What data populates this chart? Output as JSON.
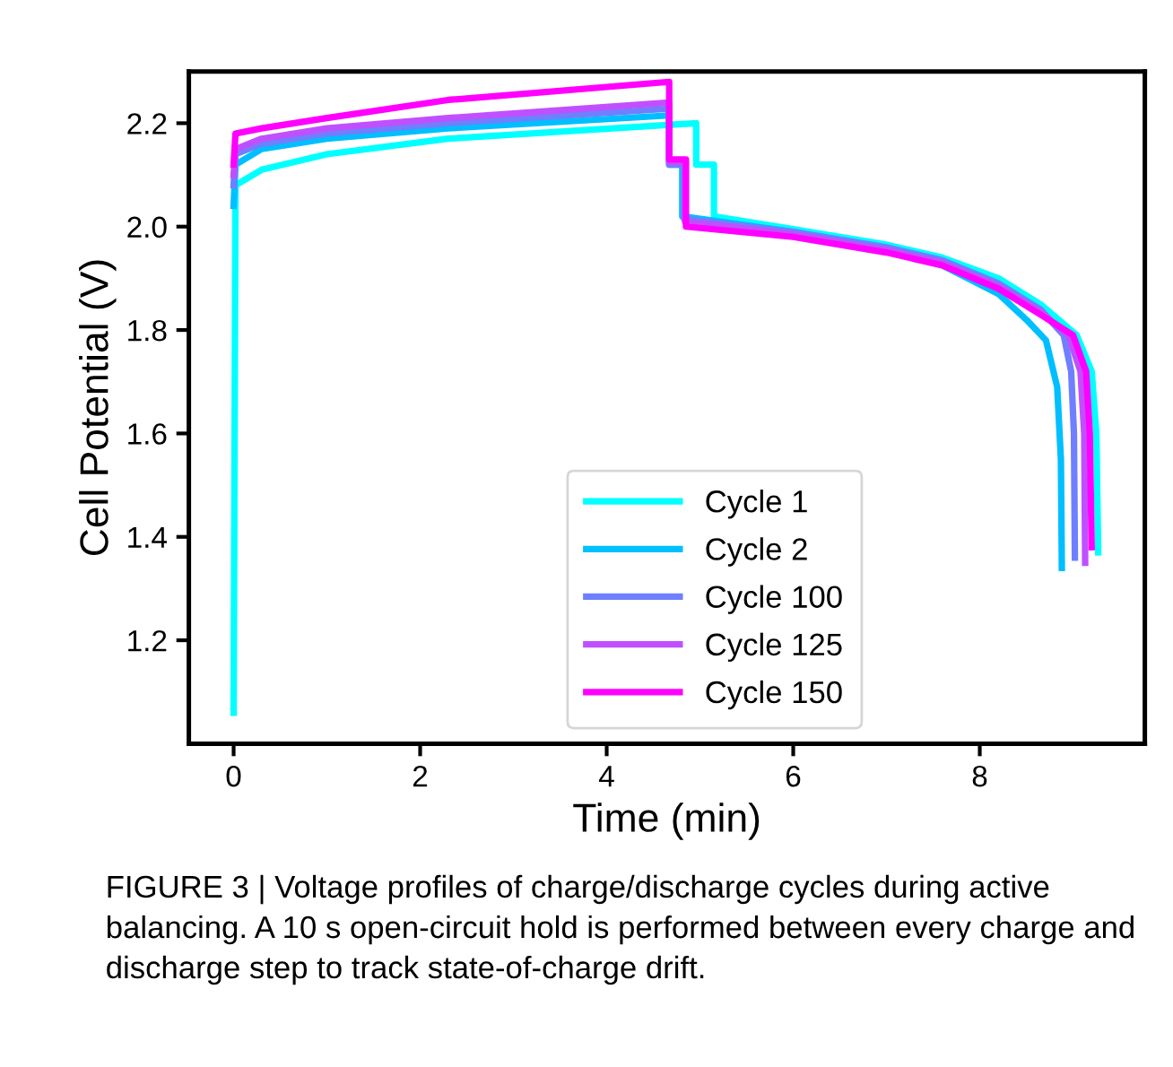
{
  "chart_data": {
    "type": "line",
    "xlabel": "Time (min)",
    "ylabel": "Cell Potential (V)",
    "xlim": [
      -0.48,
      9.77
    ],
    "ylim": [
      1.0,
      2.3
    ],
    "xticks": [
      0,
      2,
      4,
      6,
      8
    ],
    "yticks": [
      1.2,
      1.4,
      1.6,
      1.8,
      {
        "value": 2.0,
        "label": "2.0"
      },
      2.2
    ],
    "grid": false,
    "legend": "bottom",
    "marker": "none",
    "line_style": "solid",
    "annotations": [
      "FIGURE 3 | Voltage profiles of charge/discharge cycles during active balancing. A 10 s open-circuit hold is performed between every charge and discharge step to track state-of-charge drift."
    ],
    "series": [
      {
        "name": "Cycle 1",
        "color": "#00ffff",
        "x": [
          0,
          0.02,
          0.3,
          1.0,
          2.3,
          4.96,
          4.96,
          5.15,
          5.15,
          6,
          7,
          7.6,
          8.2,
          8.65,
          9.04,
          9.2,
          9.25,
          9.27
        ],
        "values": [
          1.06,
          2.08,
          2.11,
          2.14,
          2.17,
          2.2,
          2.12,
          2.12,
          2.02,
          1.995,
          1.965,
          1.94,
          1.9,
          1.85,
          1.79,
          1.72,
          1.6,
          1.37
        ]
      },
      {
        "name": "Cycle 2",
        "color": "#00bfff",
        "x": [
          0,
          0.02,
          0.3,
          1.0,
          2.3,
          4.67,
          4.67,
          4.81,
          4.81,
          6,
          7,
          7.6,
          8.2,
          8.5,
          8.71,
          8.83,
          8.87,
          8.88
        ],
        "values": [
          2.04,
          2.12,
          2.15,
          2.17,
          2.19,
          2.215,
          2.12,
          2.12,
          2.02,
          1.99,
          1.955,
          1.925,
          1.87,
          1.82,
          1.78,
          1.69,
          1.55,
          1.34
        ]
      },
      {
        "name": "Cycle 100",
        "color": "#6f7fff",
        "x": [
          0,
          0.02,
          0.3,
          1.0,
          2.3,
          4.67,
          4.67,
          4.83,
          4.83,
          6,
          7,
          7.6,
          8.2,
          8.65,
          8.9,
          8.98,
          9.01,
          9.02
        ],
        "values": [
          2.08,
          2.14,
          2.16,
          2.18,
          2.2,
          2.228,
          2.12,
          2.12,
          2.015,
          1.99,
          1.96,
          1.935,
          1.89,
          1.84,
          1.79,
          1.72,
          1.6,
          1.36
        ]
      },
      {
        "name": "Cycle 125",
        "color": "#c050ff",
        "x": [
          0,
          0.02,
          0.3,
          1.0,
          2.3,
          4.67,
          4.67,
          4.84,
          4.84,
          6,
          7,
          7.6,
          8.2,
          8.65,
          8.95,
          9.08,
          9.12,
          9.13
        ],
        "values": [
          2.1,
          2.15,
          2.17,
          2.19,
          2.21,
          2.24,
          2.125,
          2.125,
          2.01,
          1.985,
          1.955,
          1.93,
          1.885,
          1.835,
          1.79,
          1.72,
          1.6,
          1.35
        ]
      },
      {
        "name": "Cycle 150",
        "color": "#ff00ff",
        "x": [
          0,
          0.02,
          0.3,
          1.0,
          2.3,
          4.67,
          4.67,
          4.85,
          4.85,
          6,
          7,
          7.6,
          8.2,
          8.65,
          9.0,
          9.14,
          9.18,
          9.2
        ],
        "values": [
          2.12,
          2.18,
          2.19,
          2.21,
          2.245,
          2.28,
          2.13,
          2.13,
          2.0,
          1.98,
          1.95,
          1.925,
          1.88,
          1.83,
          1.79,
          1.72,
          1.6,
          1.38
        ]
      }
    ]
  }
}
